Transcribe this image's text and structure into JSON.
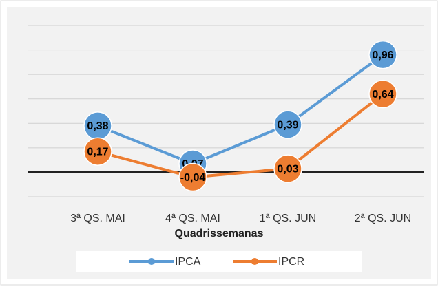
{
  "chart_data": {
    "type": "line",
    "x_label": "Quadrissemanas",
    "categories": [
      "3ª QS. MAI",
      "4ª QS. MAI",
      "1ª QS. JUN",
      "2ª QS. JUN"
    ],
    "series": [
      {
        "name": "IPCA",
        "color": "#5b9bd5",
        "values": [
          0.38,
          0.07,
          0.39,
          0.96
        ],
        "value_labels": [
          "0,38",
          "0,07",
          "0,39",
          "0,96"
        ]
      },
      {
        "name": "IPCR",
        "color": "#ed7d31",
        "values": [
          0.17,
          -0.04,
          0.03,
          0.64
        ],
        "value_labels": [
          "0,17",
          "-0,04",
          "0,03",
          "0,64"
        ]
      }
    ],
    "ylim": [
      -0.2,
      1.2
    ],
    "yticks": [
      -0.2,
      0,
      0.2,
      0.4,
      0.6,
      0.8,
      1,
      1.2
    ],
    "grid": true,
    "legend": "bottom"
  }
}
